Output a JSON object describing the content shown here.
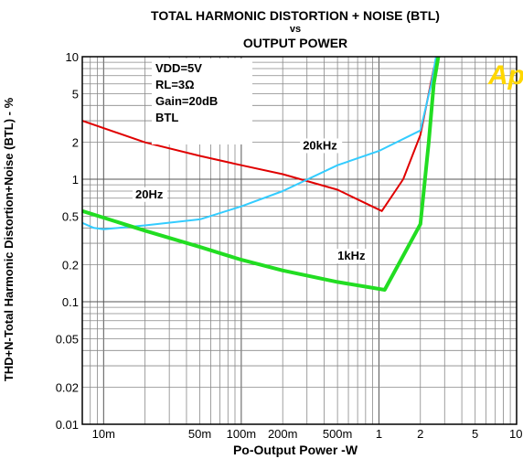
{
  "chart_data": {
    "type": "line",
    "title_lines": [
      "TOTAL HARMONIC DISTORTION + NOISE (BTL)",
      "vs",
      "OUTPUT POWER"
    ],
    "xlabel": "Po-Output Power -W",
    "ylabel": "THD+N-Total Harmonic Distortion+Noise (BTL) - %",
    "xscale": "log",
    "yscale": "log",
    "xlim": [
      0.007,
      10
    ],
    "ylim": [
      0.01,
      10
    ],
    "grid": true,
    "x_ticks": [
      {
        "value": 0.01,
        "label": "10m"
      },
      {
        "value": 0.05,
        "label": "50m"
      },
      {
        "value": 0.1,
        "label": "100m"
      },
      {
        "value": 0.2,
        "label": "200m"
      },
      {
        "value": 0.5,
        "label": "500m"
      },
      {
        "value": 1,
        "label": "1"
      },
      {
        "value": 2,
        "label": "2"
      },
      {
        "value": 5,
        "label": "5"
      },
      {
        "value": 10,
        "label": "10"
      }
    ],
    "y_ticks": [
      {
        "value": 10,
        "label": "10"
      },
      {
        "value": 5,
        "label": "5"
      },
      {
        "value": 2,
        "label": "2"
      },
      {
        "value": 1,
        "label": "1"
      },
      {
        "value": 0.5,
        "label": "0.5"
      },
      {
        "value": 0.2,
        "label": "0.2"
      },
      {
        "value": 0.1,
        "label": "0.1"
      },
      {
        "value": 0.05,
        "label": "0.05"
      },
      {
        "value": 0.02,
        "label": "0.02"
      },
      {
        "value": 0.01,
        "label": "0.01"
      }
    ],
    "conditions": [
      "VDD=5V",
      "RL=3Ω",
      "Gain=20dB",
      "BTL"
    ],
    "logo_text": "Ap",
    "series": [
      {
        "name": "20kHz",
        "color": "#e00000",
        "line_width": 2,
        "points": [
          [
            0.007,
            3.0
          ],
          [
            0.02,
            2.0
          ],
          [
            0.05,
            1.55
          ],
          [
            0.1,
            1.3
          ],
          [
            0.2,
            1.1
          ],
          [
            0.5,
            0.82
          ],
          [
            1.05,
            0.55
          ],
          [
            1.5,
            1.0
          ],
          [
            2.0,
            2.3
          ],
          [
            2.5,
            8.0
          ],
          [
            2.7,
            10.0
          ]
        ]
      },
      {
        "name": "20Hz",
        "color": "#33ccff",
        "line_width": 2,
        "points": [
          [
            0.007,
            0.44
          ],
          [
            0.0085,
            0.4
          ],
          [
            0.01,
            0.39
          ],
          [
            0.02,
            0.42
          ],
          [
            0.05,
            0.47
          ],
          [
            0.1,
            0.6
          ],
          [
            0.2,
            0.8
          ],
          [
            0.5,
            1.3
          ],
          [
            1.0,
            1.7
          ],
          [
            2.0,
            2.5
          ],
          [
            2.4,
            6.0
          ],
          [
            2.6,
            10.0
          ]
        ]
      },
      {
        "name": "1kHz",
        "color": "#22dd22",
        "line_width": 4,
        "points": [
          [
            0.007,
            0.55
          ],
          [
            0.02,
            0.38
          ],
          [
            0.05,
            0.28
          ],
          [
            0.1,
            0.22
          ],
          [
            0.2,
            0.18
          ],
          [
            0.5,
            0.145
          ],
          [
            1.1,
            0.125
          ],
          [
            2.0,
            0.43
          ],
          [
            2.3,
            2.0
          ],
          [
            2.5,
            6.0
          ],
          [
            2.7,
            10.0
          ]
        ]
      }
    ],
    "series_labels": [
      {
        "text": "20kHz",
        "x": 0.28,
        "y": 1.75
      },
      {
        "text": "20Hz",
        "x": 0.017,
        "y": 0.7
      },
      {
        "text": "1kHz",
        "x": 0.5,
        "y": 0.22
      }
    ]
  }
}
